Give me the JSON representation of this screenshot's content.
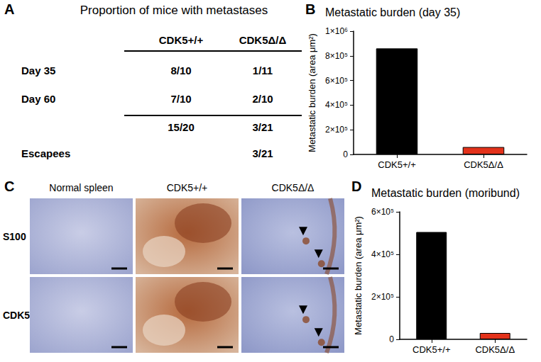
{
  "panel_labels": [
    "A",
    "B",
    "C",
    "D"
  ],
  "table": {
    "title": "Proportion of mice with metastases",
    "columns": [
      null,
      "CDK5+/+",
      "CDK5Δ/Δ"
    ],
    "rows": [
      [
        "Day 35",
        "8/10",
        "1/11"
      ],
      [
        "Day 60",
        "7/10",
        "2/10"
      ],
      [
        null,
        "15/20",
        "3/21"
      ],
      [
        "Escapees",
        null,
        "3/21"
      ]
    ]
  },
  "images": {
    "columns": [
      "Normal spleen",
      "CDK5+/+",
      "CDK5Δ/Δ"
    ],
    "rows": [
      "S100",
      "CDK5"
    ]
  },
  "chart_data": [
    {
      "type": "bar",
      "title": "Metastatic burden (day 35)",
      "y_label": "Metastatic burden (area μm²)",
      "categories": [
        "CDK5+/+",
        "CDK5Δ/Δ"
      ],
      "values": [
        860000,
        60000
      ],
      "colors": [
        "#000000",
        "#e3321b"
      ],
      "ylim": [
        0,
        1000000
      ],
      "yticks": [
        0,
        {
          "value": 200000,
          "label": "2×10⁵"
        },
        {
          "value": 400000,
          "label": "4×10⁵"
        },
        {
          "value": 600000,
          "label": "6×10⁵"
        },
        {
          "value": 800000,
          "label": "8×10⁵"
        },
        {
          "value": 1000000,
          "label": "1×10⁶"
        }
      ],
      "grid": false
    },
    {
      "type": "bar",
      "title": "Metastatic burden (moribund)",
      "y_label": "Metastatic burden (area μm²)",
      "categories": [
        "CDK5+/+",
        "CDK5Δ/Δ"
      ],
      "values": [
        505000,
        30000
      ],
      "colors": [
        "#000000",
        "#e3321b"
      ],
      "ylim": [
        0,
        600000
      ],
      "yticks": [
        0,
        {
          "value": 200000,
          "label": "2×10⁵"
        },
        {
          "value": 400000,
          "label": "4×10⁵"
        },
        {
          "value": 600000,
          "label": "6×10⁵"
        }
      ],
      "grid": false
    }
  ]
}
